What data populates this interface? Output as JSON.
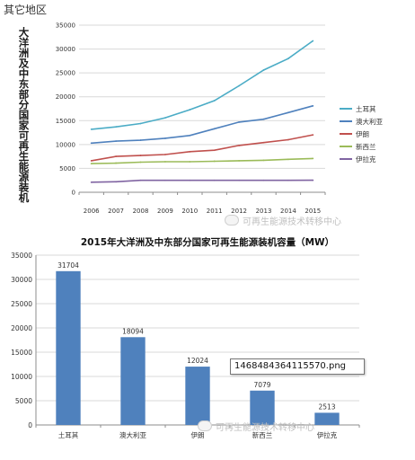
{
  "page": {
    "heading": "其它地区",
    "watermark": "可再生能源技术转移中心",
    "tooltip": "1468484364115570.png"
  },
  "chart_data": [
    {
      "type": "line",
      "title": "",
      "ylabel": "大洋洲及中东部分国家可再生能源装机容量（MW）",
      "xlabel": "",
      "x": [
        "2006",
        "2007",
        "2008",
        "2009",
        "2010",
        "2011",
        "2012",
        "2013",
        "2014",
        "2015"
      ],
      "ylim": [
        0,
        35000
      ],
      "yticks": [
        0,
        5000,
        10000,
        15000,
        20000,
        25000,
        30000,
        35000
      ],
      "grid": true,
      "legend_position": "right",
      "series": [
        {
          "name": "土耳其",
          "color": "#4bacc6",
          "values": [
            13200,
            13700,
            14400,
            15600,
            17300,
            19200,
            22300,
            25600,
            28000,
            31704
          ]
        },
        {
          "name": "澳大利亚",
          "color": "#4f81bd",
          "values": [
            10300,
            10700,
            10900,
            11300,
            11900,
            13300,
            14700,
            15300,
            16700,
            18094
          ]
        },
        {
          "name": "伊朗",
          "color": "#c0504d",
          "values": [
            6600,
            7500,
            7700,
            7900,
            8500,
            8800,
            9800,
            10400,
            11000,
            12024
          ]
        },
        {
          "name": "新西兰",
          "color": "#9bbb59",
          "values": [
            6000,
            6100,
            6300,
            6400,
            6400,
            6500,
            6600,
            6700,
            6900,
            7079
          ]
        },
        {
          "name": "伊拉克",
          "color": "#8064a2",
          "values": [
            2100,
            2200,
            2500,
            2500,
            2500,
            2500,
            2500,
            2500,
            2500,
            2513
          ]
        }
      ]
    },
    {
      "type": "bar",
      "title": "2015年大洋洲及中东部分国家可再生能源装机容量（MW）",
      "xlabel": "",
      "ylabel": "",
      "categories": [
        "土耳其",
        "澳大利亚",
        "伊朗",
        "新西兰",
        "伊拉克"
      ],
      "values": [
        31704,
        18094,
        12024,
        7079,
        2513
      ],
      "data_labels": [
        "31704",
        "18094",
        "12024",
        "7079",
        "2513"
      ],
      "ylim": [
        0,
        35000
      ],
      "yticks": [
        0,
        5000,
        10000,
        15000,
        20000,
        25000,
        30000,
        35000
      ],
      "grid": true,
      "bar_color": "#4f81bd"
    }
  ]
}
